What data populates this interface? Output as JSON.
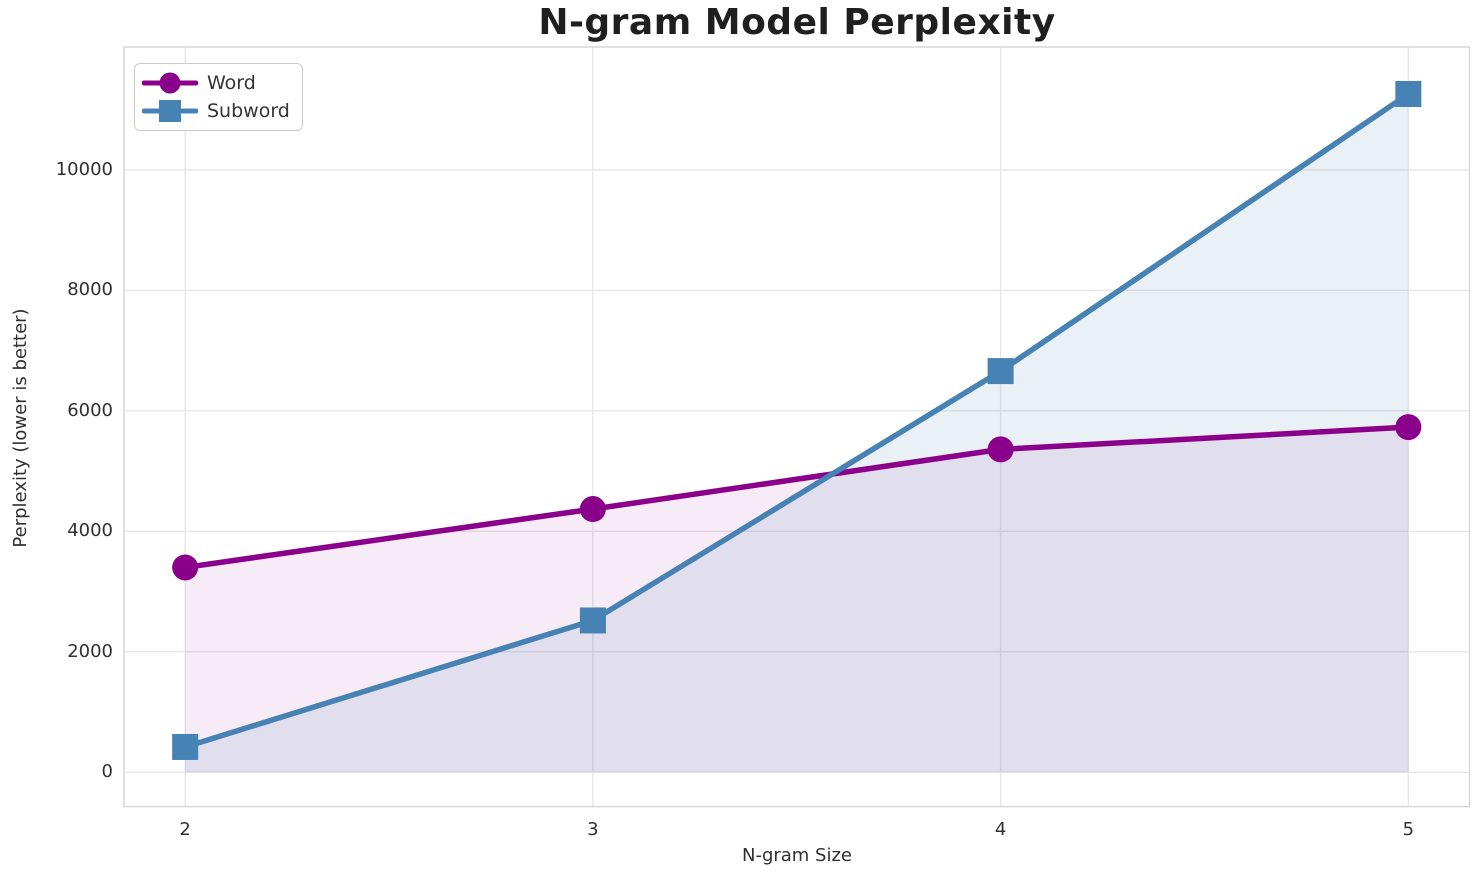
{
  "chart_data": {
    "type": "line",
    "title": "N-gram Model Perplexity",
    "xlabel": "N-gram Size",
    "ylabel": "Perplexity (lower is better)",
    "x": [
      2,
      3,
      4,
      5
    ],
    "series": [
      {
        "name": "Word",
        "color": "#8B008B",
        "marker": "circle",
        "fill_alpha": 0.08,
        "values": [
          3400,
          4370,
          5360,
          5730
        ]
      },
      {
        "name": "Subword",
        "color": "#4682B4",
        "marker": "square",
        "fill_alpha": 0.12,
        "values": [
          420,
          2520,
          6660,
          11260
        ]
      }
    ],
    "xticks": [
      2,
      3,
      4,
      5
    ],
    "yticks": [
      0,
      2000,
      4000,
      6000,
      8000,
      10000
    ],
    "xlim": [
      1.85,
      5.15
    ],
    "ylim": [
      -570,
      12040
    ],
    "grid": true,
    "fill_to_zero": true,
    "legend_position": "upper left",
    "style": {
      "grid_color": "#e7e7ea",
      "frame_color": "#d7d7dc",
      "text_color": "#303030",
      "line_width": 5.5,
      "marker_size": 26
    }
  }
}
